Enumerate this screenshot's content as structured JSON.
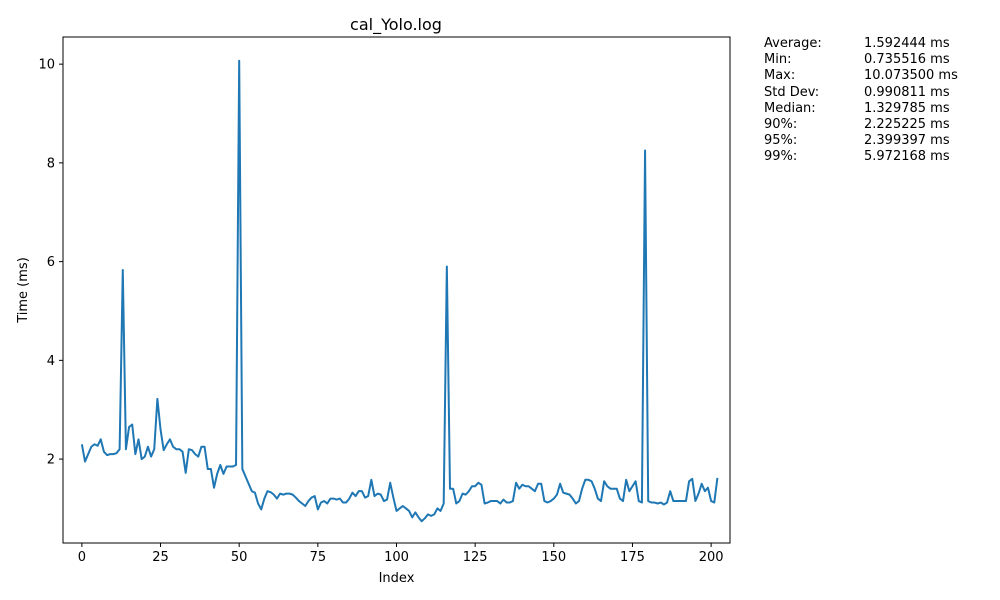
{
  "chart_data": {
    "type": "line",
    "title": "cal_Yolo.log",
    "xlabel": "Index",
    "ylabel": "Time (ms)",
    "xlim": [
      -6,
      206
    ],
    "ylim": [
      0.3,
      10.55
    ],
    "xticks": [
      0,
      25,
      50,
      75,
      100,
      125,
      150,
      175,
      200
    ],
    "yticks": [
      2,
      4,
      6,
      8,
      10
    ],
    "grid": false,
    "color": "#1f77b4",
    "series": [
      {
        "values": [
          2.3,
          1.95,
          2.1,
          2.25,
          2.3,
          2.27,
          2.4,
          2.15,
          2.08,
          2.1,
          2.1,
          2.12,
          2.2,
          5.83,
          2.2,
          2.65,
          2.7,
          2.1,
          2.4,
          2.0,
          2.05,
          2.25,
          2.05,
          2.2,
          3.22,
          2.6,
          2.18,
          2.3,
          2.4,
          2.25,
          2.2,
          2.2,
          2.15,
          1.72,
          2.2,
          2.18,
          2.1,
          2.05,
          2.25,
          2.25,
          1.8,
          1.8,
          1.42,
          1.7,
          1.88,
          1.7,
          1.85,
          1.85,
          1.85,
          1.88,
          10.07,
          1.8,
          1.65,
          1.5,
          1.35,
          1.32,
          1.1,
          0.98,
          1.2,
          1.35,
          1.33,
          1.28,
          1.2,
          1.3,
          1.28,
          1.3,
          1.3,
          1.28,
          1.22,
          1.15,
          1.1,
          1.05,
          1.15,
          1.22,
          1.25,
          0.98,
          1.12,
          1.15,
          1.1,
          1.2,
          1.2,
          1.18,
          1.2,
          1.12,
          1.12,
          1.2,
          1.32,
          1.25,
          1.35,
          1.35,
          1.22,
          1.25,
          1.58,
          1.25,
          1.3,
          1.28,
          1.15,
          1.18,
          1.52,
          1.22,
          0.95,
          1.0,
          1.05,
          1.0,
          0.95,
          0.82,
          0.92,
          0.82,
          0.74,
          0.8,
          0.88,
          0.85,
          0.88,
          1.0,
          0.95,
          1.1,
          5.9,
          1.4,
          1.4,
          1.1,
          1.15,
          1.3,
          1.28,
          1.35,
          1.45,
          1.45,
          1.52,
          1.48,
          1.1,
          1.12,
          1.15,
          1.15,
          1.15,
          1.1,
          1.18,
          1.12,
          1.12,
          1.15,
          1.52,
          1.4,
          1.48,
          1.45,
          1.45,
          1.4,
          1.35,
          1.5,
          1.5,
          1.15,
          1.12,
          1.15,
          1.2,
          1.28,
          1.5,
          1.32,
          1.3,
          1.28,
          1.2,
          1.1,
          1.15,
          1.4,
          1.58,
          1.58,
          1.55,
          1.4,
          1.2,
          1.15,
          1.55,
          1.45,
          1.4,
          1.4,
          1.4,
          1.2,
          1.15,
          1.58,
          1.35,
          1.45,
          1.55,
          1.15,
          1.12,
          8.25,
          1.15,
          1.12,
          1.12,
          1.1,
          1.12,
          1.08,
          1.12,
          1.35,
          1.15,
          1.15,
          1.15,
          1.15,
          1.15,
          1.55,
          1.6,
          1.15,
          1.3,
          1.5,
          1.35,
          1.42,
          1.15,
          1.12,
          1.62
        ]
      }
    ]
  },
  "stats": [
    {
      "label": "Average:",
      "value": "1.592444 ms"
    },
    {
      "label": "Min:",
      "value": "0.735516 ms"
    },
    {
      "label": "Max:",
      "value": "10.073500 ms"
    },
    {
      "label": "Std Dev:",
      "value": "0.990811 ms"
    },
    {
      "label": "Median:",
      "value": "1.329785 ms"
    },
    {
      "label": "90%:",
      "value": "2.225225 ms"
    },
    {
      "label": "95%:",
      "value": "2.399397 ms"
    },
    {
      "label": "99%:",
      "value": "5.972168 ms"
    }
  ]
}
